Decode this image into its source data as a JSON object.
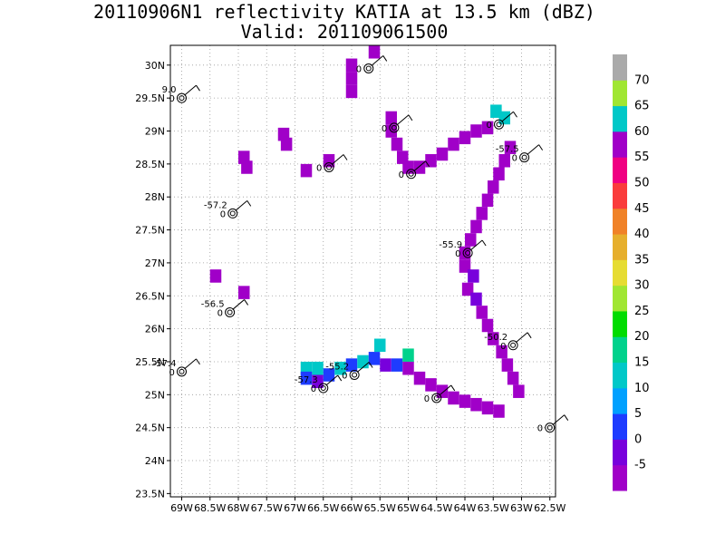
{
  "title": {
    "line1": "20110906N1 reflectivity KATIA at 13.5 km (dBZ)",
    "line2": "Valid: 201109061500"
  },
  "chart_data": {
    "type": "heatmap",
    "x_ticks": [
      "69W",
      "68.5W",
      "68W",
      "67.5W",
      "67W",
      "66.5W",
      "66W",
      "65.5W",
      "65W",
      "64.5W",
      "64W",
      "63.5W",
      "63W",
      "62.5W"
    ],
    "x_tick_values": [
      -69,
      -68.5,
      -68,
      -67.5,
      -67,
      -66.5,
      -66,
      -65.5,
      -65,
      -64.5,
      -64,
      -63.5,
      -63,
      -62.5
    ],
    "y_ticks": [
      "23.5N",
      "24N",
      "24.5N",
      "25N",
      "25.5N",
      "26N",
      "26.5N",
      "27N",
      "27.5N",
      "28N",
      "28.5N",
      "29N",
      "29.5N",
      "30N"
    ],
    "y_tick_values": [
      23.5,
      24,
      24.5,
      25,
      25.5,
      26,
      26.5,
      27,
      27.5,
      28,
      28.5,
      29,
      29.5,
      30
    ],
    "xlim": [
      -69.2,
      -62.4
    ],
    "ylim": [
      23.45,
      30.3
    ],
    "grid": true,
    "colorbar": {
      "labels": [
        "-5",
        "0",
        "5",
        "10",
        "15",
        "20",
        "25",
        "30",
        "35",
        "40",
        "45",
        "50",
        "55",
        "60",
        "65",
        "70"
      ],
      "colors": [
        "#a000c8",
        "#7800dc",
        "#1e3cff",
        "#00a0ff",
        "#00c8c8",
        "#00d28c",
        "#00dc00",
        "#a0e632",
        "#e6dc32",
        "#e6af2d",
        "#f08228",
        "#fa3c3c",
        "#f00082",
        "#a000c8",
        "#00c8c8",
        "#a0e632",
        "#aaaaaa"
      ]
    },
    "stations": [
      {
        "lon": -69.0,
        "lat": 29.5,
        "label": "9.0"
      },
      {
        "lon": -68.1,
        "lat": 27.75,
        "label": "-57.2"
      },
      {
        "lon": -68.15,
        "lat": 26.25,
        "label": "-56.5"
      },
      {
        "lon": -69.0,
        "lat": 25.35,
        "label": "-57.4"
      },
      {
        "lon": -66.5,
        "lat": 25.1,
        "label": "-57.3"
      },
      {
        "lon": -65.95,
        "lat": 25.3,
        "label": "-55.2"
      },
      {
        "lon": -63.95,
        "lat": 27.15,
        "label": "-55.9"
      },
      {
        "lon": -63.15,
        "lat": 25.75,
        "label": "-50.2"
      },
      {
        "lon": -62.95,
        "lat": 28.6,
        "label": "-57.5"
      },
      {
        "lon": -65.7,
        "lat": 29.95,
        "label": ""
      },
      {
        "lon": -65.25,
        "lat": 29.05,
        "label": ""
      },
      {
        "lon": -66.4,
        "lat": 28.45,
        "label": ""
      },
      {
        "lon": -64.95,
        "lat": 28.35,
        "label": ""
      },
      {
        "lon": -63.4,
        "lat": 29.1,
        "label": ""
      },
      {
        "lon": -64.5,
        "lat": 24.95,
        "label": ""
      },
      {
        "lon": -62.5,
        "lat": 24.5,
        "label": ""
      }
    ],
    "cells": [
      {
        "lon": -65.6,
        "lat": 30.2,
        "value": -3
      },
      {
        "lon": -66.0,
        "lat": 30.0,
        "value": -3
      },
      {
        "lon": -66.0,
        "lat": 29.8,
        "value": -3
      },
      {
        "lon": -66.0,
        "lat": 29.6,
        "value": -3
      },
      {
        "lon": -65.3,
        "lat": 29.2,
        "value": -3
      },
      {
        "lon": -65.3,
        "lat": 29.0,
        "value": -3
      },
      {
        "lon": -65.2,
        "lat": 28.8,
        "value": -3
      },
      {
        "lon": -65.1,
        "lat": 28.6,
        "value": -3
      },
      {
        "lon": -65.0,
        "lat": 28.45,
        "value": -3
      },
      {
        "lon": -64.8,
        "lat": 28.45,
        "value": -3
      },
      {
        "lon": -64.6,
        "lat": 28.55,
        "value": -3
      },
      {
        "lon": -64.4,
        "lat": 28.65,
        "value": -3
      },
      {
        "lon": -64.2,
        "lat": 28.8,
        "value": -3
      },
      {
        "lon": -64.0,
        "lat": 28.9,
        "value": -3
      },
      {
        "lon": -63.8,
        "lat": 29.0,
        "value": -3
      },
      {
        "lon": -63.6,
        "lat": 29.05,
        "value": -3
      },
      {
        "lon": -63.45,
        "lat": 29.3,
        "value": 15
      },
      {
        "lon": -63.3,
        "lat": 29.2,
        "value": 15
      },
      {
        "lon": -67.2,
        "lat": 28.95,
        "value": -3
      },
      {
        "lon": -67.15,
        "lat": 28.8,
        "value": -3
      },
      {
        "lon": -67.9,
        "lat": 28.6,
        "value": -3
      },
      {
        "lon": -67.85,
        "lat": 28.45,
        "value": -3
      },
      {
        "lon": -66.8,
        "lat": 28.4,
        "value": -3
      },
      {
        "lon": -66.4,
        "lat": 28.55,
        "value": -3
      },
      {
        "lon": -63.2,
        "lat": 28.75,
        "value": -3
      },
      {
        "lon": -63.3,
        "lat": 28.55,
        "value": -3
      },
      {
        "lon": -63.4,
        "lat": 28.35,
        "value": -3
      },
      {
        "lon": -63.5,
        "lat": 28.15,
        "value": -3
      },
      {
        "lon": -63.6,
        "lat": 27.95,
        "value": -3
      },
      {
        "lon": -63.7,
        "lat": 27.75,
        "value": -3
      },
      {
        "lon": -63.8,
        "lat": 27.55,
        "value": -3
      },
      {
        "lon": -63.9,
        "lat": 27.35,
        "value": -3
      },
      {
        "lon": -64.0,
        "lat": 27.15,
        "value": -3
      },
      {
        "lon": -64.0,
        "lat": 26.95,
        "value": -3
      },
      {
        "lon": -63.85,
        "lat": 26.8,
        "value": 2
      },
      {
        "lon": -63.95,
        "lat": 26.6,
        "value": -3
      },
      {
        "lon": -63.8,
        "lat": 26.45,
        "value": 2
      },
      {
        "lon": -63.7,
        "lat": 26.25,
        "value": -3
      },
      {
        "lon": -63.6,
        "lat": 26.05,
        "value": -3
      },
      {
        "lon": -63.5,
        "lat": 25.85,
        "value": -3
      },
      {
        "lon": -63.35,
        "lat": 25.65,
        "value": -3
      },
      {
        "lon": -63.25,
        "lat": 25.45,
        "value": -3
      },
      {
        "lon": -63.15,
        "lat": 25.25,
        "value": -3
      },
      {
        "lon": -63.05,
        "lat": 25.05,
        "value": -3
      },
      {
        "lon": -68.4,
        "lat": 26.8,
        "value": -3
      },
      {
        "lon": -67.9,
        "lat": 26.55,
        "value": -3
      },
      {
        "lon": -66.8,
        "lat": 25.4,
        "value": 15
      },
      {
        "lon": -66.6,
        "lat": 25.4,
        "value": 15
      },
      {
        "lon": -66.8,
        "lat": 25.25,
        "value": 7
      },
      {
        "lon": -66.6,
        "lat": 25.2,
        "value": 2
      },
      {
        "lon": -66.4,
        "lat": 25.3,
        "value": 7
      },
      {
        "lon": -66.2,
        "lat": 25.4,
        "value": 15
      },
      {
        "lon": -66.0,
        "lat": 25.45,
        "value": 7
      },
      {
        "lon": -65.8,
        "lat": 25.5,
        "value": 15
      },
      {
        "lon": -65.6,
        "lat": 25.55,
        "value": 7
      },
      {
        "lon": -65.4,
        "lat": 25.45,
        "value": 2
      },
      {
        "lon": -65.2,
        "lat": 25.45,
        "value": 7
      },
      {
        "lon": -65.5,
        "lat": 25.75,
        "value": 15
      },
      {
        "lon": -65.0,
        "lat": 25.6,
        "value": 18
      },
      {
        "lon": -65.0,
        "lat": 25.4,
        "value": -3
      },
      {
        "lon": -64.8,
        "lat": 25.25,
        "value": -3
      },
      {
        "lon": -64.6,
        "lat": 25.15,
        "value": -3
      },
      {
        "lon": -64.4,
        "lat": 25.05,
        "value": -3
      },
      {
        "lon": -64.2,
        "lat": 24.95,
        "value": -3
      },
      {
        "lon": -64.0,
        "lat": 24.9,
        "value": -3
      },
      {
        "lon": -63.8,
        "lat": 24.85,
        "value": -3
      },
      {
        "lon": -63.6,
        "lat": 24.8,
        "value": -3
      },
      {
        "lon": -63.4,
        "lat": 24.75,
        "value": -3
      }
    ]
  }
}
